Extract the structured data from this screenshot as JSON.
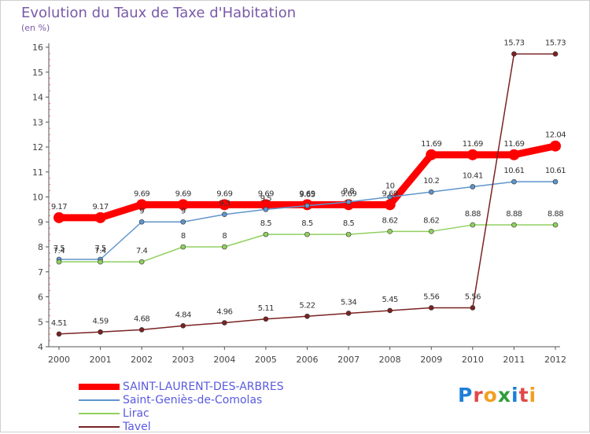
{
  "header": {
    "title": "Evolution du Taux de Taxe d'Habitation",
    "subtitle": "(en %)"
  },
  "logo": {
    "letters": [
      "P",
      "r",
      "o",
      "x",
      "i",
      "t",
      "i"
    ],
    "colors": [
      "#1e7fd8",
      "#e04848",
      "#f0a020",
      "#2f9e3a",
      "#1e7fd8",
      "#e04848",
      "#f0a020"
    ]
  },
  "chart_data": {
    "type": "line",
    "x": [
      2000,
      2001,
      2002,
      2003,
      2004,
      2005,
      2006,
      2007,
      2008,
      2009,
      2010,
      2011,
      2012
    ],
    "ylim": [
      4,
      16
    ],
    "yticks": [
      4,
      5,
      6,
      7,
      8,
      9,
      10,
      11,
      12,
      13,
      14,
      15,
      16
    ],
    "grid": false,
    "legend_position": "bottom-left",
    "series": [
      {
        "name": "SAINT-LAURENT-DES-ARBRES",
        "color": "#ff0000",
        "values": [
          9.17,
          9.17,
          9.69,
          9.69,
          9.69,
          9.69,
          9.69,
          9.69,
          9.69,
          11.69,
          11.69,
          11.69,
          12.04
        ],
        "labels": [
          "9.17",
          "9.17",
          "9.69",
          "9.69",
          "9.69",
          "9.69",
          "9.69",
          "9.69",
          "9.69",
          "11.69",
          "11.69",
          "11.69",
          "12.04"
        ]
      },
      {
        "name": "Saint-Geniès-de-Comolas",
        "color": "#5f95cc",
        "values": [
          7.5,
          7.5,
          9,
          9,
          9.3,
          9.5,
          9.65,
          9.8,
          10,
          10.2,
          10.41,
          10.61,
          10.61
        ],
        "labels": [
          "7.5",
          "7.5",
          "9",
          "9",
          "9.3",
          "9.5",
          "9.65",
          "9.8",
          "10",
          "10.2",
          "10.41",
          "10.61",
          "10.61"
        ]
      },
      {
        "name": "Lirac",
        "color": "#90d060",
        "values": [
          7.4,
          7.4,
          7.4,
          8,
          8,
          8.5,
          8.5,
          8.5,
          8.62,
          8.62,
          8.88,
          8.88,
          8.88
        ],
        "labels": [
          "7.4",
          "7.4",
          "7.4",
          "8",
          "8",
          "8.5",
          "8.5",
          "8.5",
          "8.62",
          "8.62",
          "8.88",
          "8.88",
          "8.88"
        ]
      },
      {
        "name": "Tavel",
        "color": "#7a2222",
        "values": [
          4.51,
          4.59,
          4.68,
          4.84,
          4.96,
          5.11,
          5.22,
          5.34,
          5.45,
          5.56,
          5.56,
          15.73,
          15.73
        ],
        "labels": [
          "4.51",
          "4.59",
          "4.68",
          "4.84",
          "4.96",
          "5.11",
          "5.22",
          "5.34",
          "5.45",
          "5.56",
          "5.56",
          "15.73",
          "15.73"
        ]
      }
    ]
  }
}
